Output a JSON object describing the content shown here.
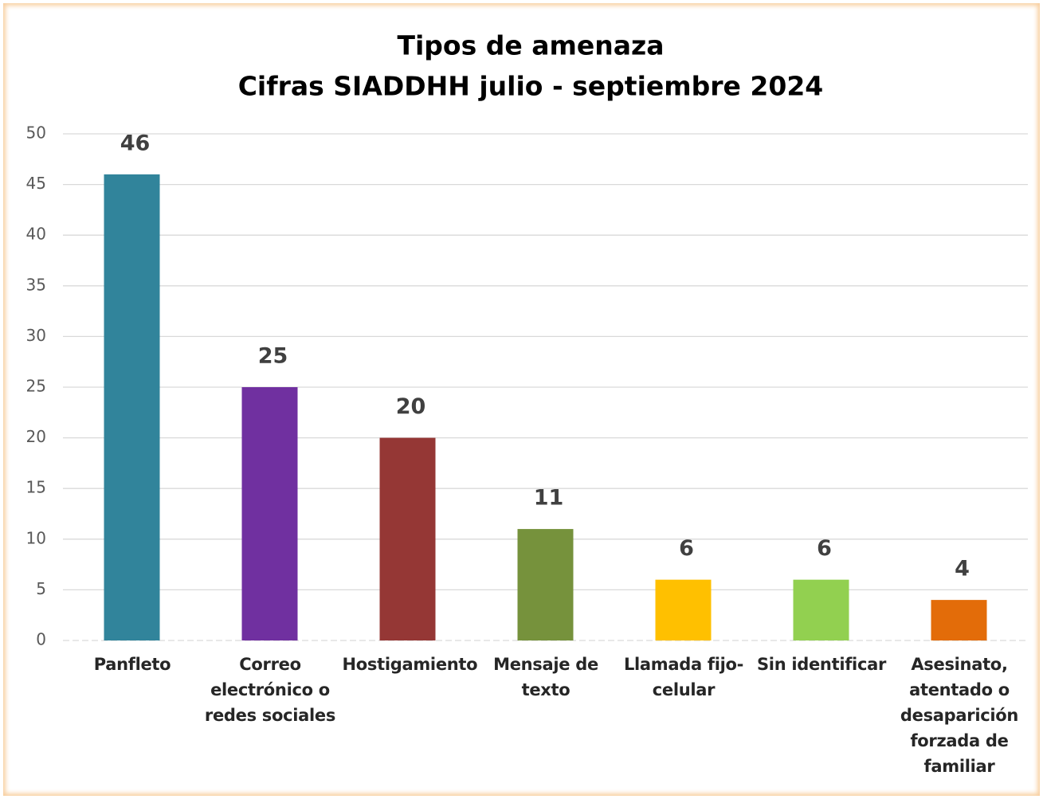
{
  "chart_data": {
    "type": "bar",
    "title": "Tipos de amenaza",
    "subtitle": "Cifras SIADDHH julio - septiembre 2024",
    "categories": [
      "Panfleto",
      "Correo electrónico o redes sociales",
      "Hostigamiento",
      "Mensaje de texto",
      "Llamada fijo-celular",
      "Sin identificar",
      "Asesinato, atentado o desaparición forzada de familiar"
    ],
    "values": [
      46,
      25,
      20,
      11,
      6,
      6,
      4
    ],
    "colors": [
      "#31849b",
      "#7030a0",
      "#953735",
      "#76923c",
      "#ffc000",
      "#92d050",
      "#e36c09"
    ],
    "ylim": [
      0,
      50
    ],
    "yticks": [
      0,
      5,
      10,
      15,
      20,
      25,
      30,
      35,
      40,
      45,
      50
    ],
    "grid": true
  }
}
